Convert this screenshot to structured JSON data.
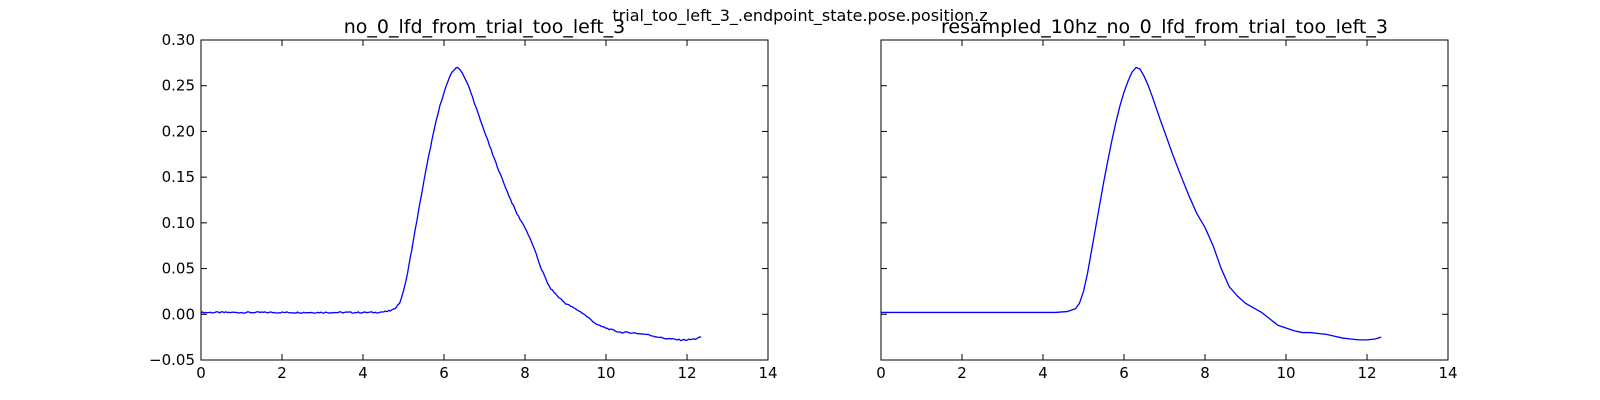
{
  "suptitle": "trial_too_left_3_.endpoint_state.pose.position.z",
  "colors": {
    "line": "#0000ff",
    "frame": "#000000"
  },
  "chart_data": [
    {
      "type": "line",
      "title": "no_0_lfd_from_trial_too_left_3",
      "xlim": [
        0,
        14
      ],
      "ylim": [
        -0.05,
        0.3
      ],
      "xticks": [
        0,
        2,
        4,
        6,
        8,
        10,
        12,
        14
      ],
      "yticks": [
        -0.05,
        0.0,
        0.05,
        0.1,
        0.15,
        0.2,
        0.25,
        0.3
      ],
      "ytick_labels": [
        "−0.05",
        "0.00",
        "0.05",
        "0.10",
        "0.15",
        "0.20",
        "0.25",
        "0.30"
      ],
      "show_yticklabels": true,
      "grid": false,
      "series": [
        {
          "x": [
            0,
            0.5,
            1,
            1.5,
            2,
            2.5,
            3,
            3.5,
            4,
            4.3,
            4.6,
            4.75,
            4.9,
            5.0,
            5.1,
            5.2,
            5.3,
            5.4,
            5.5,
            5.6,
            5.7,
            5.8,
            5.9,
            6.0,
            6.1,
            6.2,
            6.3,
            6.4,
            6.5,
            6.6,
            6.7,
            6.8,
            6.9,
            7.0,
            7.2,
            7.4,
            7.6,
            7.8,
            8.0,
            8.2,
            8.4,
            8.6,
            8.8,
            9.0,
            9.2,
            9.4,
            9.6,
            9.8,
            10.0,
            10.2,
            10.4,
            10.6,
            10.8,
            11.0,
            11.2,
            11.4,
            11.6,
            11.8,
            12.0,
            12.2,
            12.35
          ],
          "y": [
            0.002,
            0.002,
            0.002,
            0.002,
            0.002,
            0.002,
            0.002,
            0.002,
            0.002,
            0.002,
            0.003,
            0.005,
            0.012,
            0.025,
            0.045,
            0.07,
            0.095,
            0.12,
            0.145,
            0.168,
            0.19,
            0.21,
            0.228,
            0.243,
            0.255,
            0.265,
            0.27,
            0.268,
            0.26,
            0.25,
            0.238,
            0.225,
            0.212,
            0.2,
            0.175,
            0.152,
            0.13,
            0.11,
            0.095,
            0.075,
            0.05,
            0.03,
            0.02,
            0.012,
            0.007,
            0.002,
            -0.005,
            -0.012,
            -0.015,
            -0.018,
            -0.02,
            -0.02,
            -0.021,
            -0.022,
            -0.024,
            -0.026,
            -0.027,
            -0.028,
            -0.028,
            -0.027,
            -0.025
          ],
          "jitter": 0.0008
        }
      ]
    },
    {
      "type": "line",
      "title": "resampled_10hz_no_0_lfd_from_trial_too_left_3",
      "xlim": [
        0,
        14
      ],
      "ylim": [
        -0.05,
        0.3
      ],
      "xticks": [
        0,
        2,
        4,
        6,
        8,
        10,
        12,
        14
      ],
      "yticks": [
        -0.05,
        0.0,
        0.05,
        0.1,
        0.15,
        0.2,
        0.25,
        0.3
      ],
      "show_yticklabels": false,
      "grid": false,
      "series": [
        {
          "x": [
            0,
            0.5,
            1,
            1.5,
            2,
            2.5,
            3,
            3.5,
            4,
            4.3,
            4.6,
            4.8,
            4.9,
            5.0,
            5.1,
            5.2,
            5.3,
            5.4,
            5.5,
            5.6,
            5.7,
            5.8,
            5.9,
            6.0,
            6.1,
            6.2,
            6.3,
            6.4,
            6.5,
            6.6,
            6.7,
            6.8,
            6.9,
            7.0,
            7.2,
            7.4,
            7.6,
            7.8,
            8.0,
            8.2,
            8.4,
            8.6,
            8.8,
            9.0,
            9.2,
            9.4,
            9.6,
            9.8,
            10.0,
            10.2,
            10.4,
            10.6,
            10.8,
            11.0,
            11.2,
            11.4,
            11.6,
            11.8,
            12.0,
            12.2,
            12.35
          ],
          "y": [
            0.002,
            0.002,
            0.002,
            0.002,
            0.002,
            0.002,
            0.002,
            0.002,
            0.002,
            0.002,
            0.003,
            0.006,
            0.012,
            0.025,
            0.045,
            0.07,
            0.095,
            0.12,
            0.145,
            0.168,
            0.19,
            0.21,
            0.228,
            0.243,
            0.255,
            0.265,
            0.27,
            0.268,
            0.26,
            0.25,
            0.238,
            0.225,
            0.212,
            0.2,
            0.175,
            0.152,
            0.13,
            0.11,
            0.095,
            0.075,
            0.05,
            0.03,
            0.02,
            0.012,
            0.007,
            0.002,
            -0.005,
            -0.012,
            -0.015,
            -0.018,
            -0.02,
            -0.02,
            -0.021,
            -0.022,
            -0.024,
            -0.026,
            -0.027,
            -0.028,
            -0.028,
            -0.027,
            -0.025
          ],
          "jitter": 0
        }
      ]
    }
  ]
}
